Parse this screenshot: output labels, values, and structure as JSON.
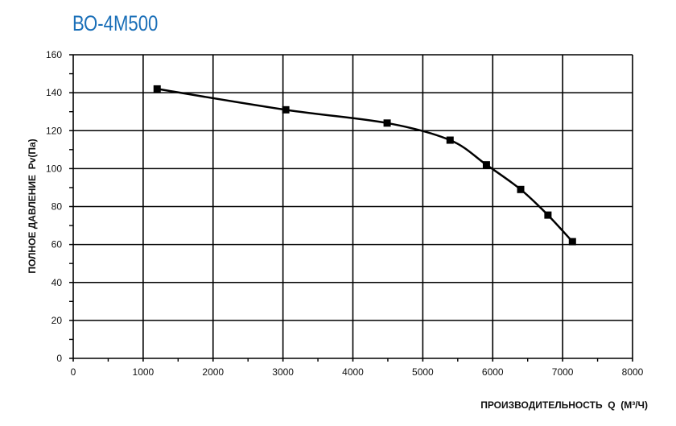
{
  "chart_data": {
    "type": "line",
    "title": "ВО-4М500",
    "xlabel": "ПРОИЗВОДИТЕЛЬНОСТЬ  Q  (М³/Ч)",
    "ylabel": "ПОЛНОЕ ДАВЛЕНИЕ  Pv(Па)",
    "xlim": [
      0,
      8000
    ],
    "ylim": [
      0,
      160
    ],
    "xticks": [
      0,
      1000,
      2000,
      3000,
      4000,
      5000,
      6000,
      7000,
      8000
    ],
    "yticks": [
      0,
      20,
      40,
      60,
      80,
      100,
      120,
      140,
      160
    ],
    "grid": true,
    "marker": "square",
    "smooth": true,
    "colors": {
      "title": "#1a6fb8",
      "line": "#000000"
    },
    "series": [
      {
        "x": [
          1200,
          3040,
          4490,
          5390,
          5910,
          6400,
          6790,
          7140
        ],
        "y": [
          142,
          131,
          124,
          115,
          102,
          89,
          75.5,
          61.5
        ]
      }
    ]
  }
}
